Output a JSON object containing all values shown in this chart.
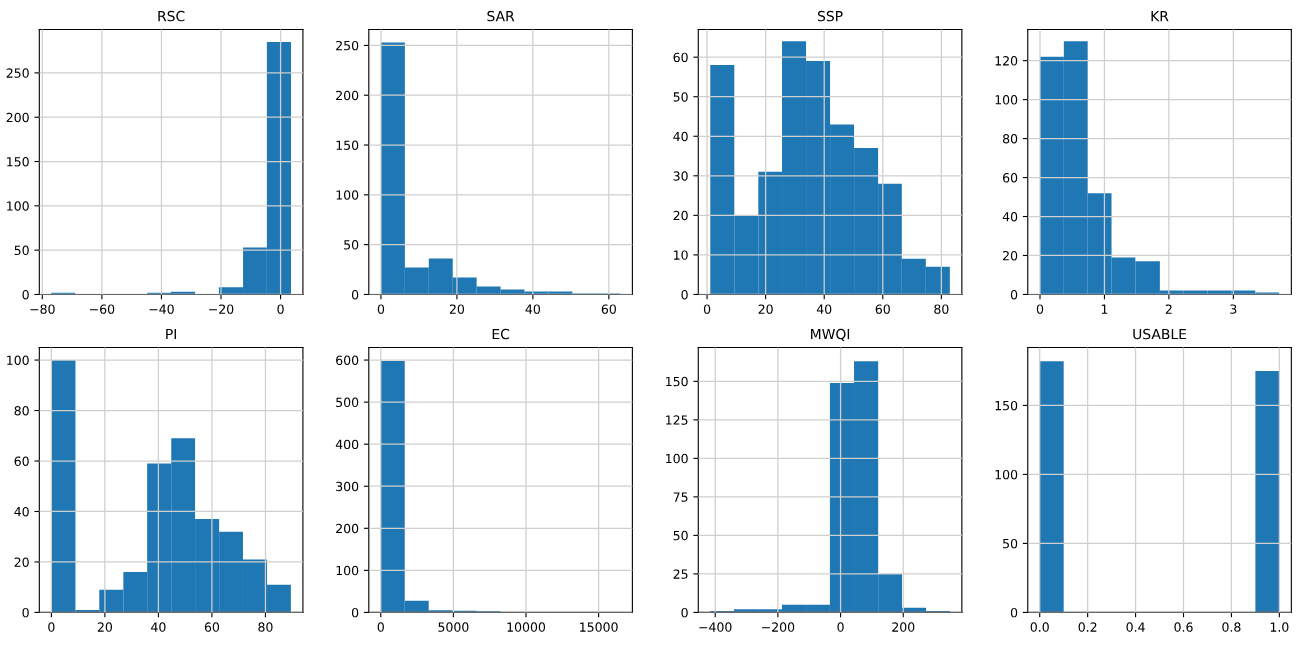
{
  "chart_data": [
    {
      "type": "histogram",
      "title": "RSC",
      "color": "#1f77b4",
      "grid": true,
      "bins": [
        -77,
        -69,
        -60.9,
        -52.9,
        -44.8,
        -36.8,
        -28.7,
        -20.7,
        -12.6,
        -4.6,
        3.5
      ],
      "values": [
        2,
        0,
        0,
        0,
        2,
        3,
        0,
        8,
        53,
        285
      ],
      "xlim": [
        -81,
        7.5
      ],
      "ylim": [
        0,
        299
      ],
      "xticks": [
        {
          "value": -80,
          "label": "−80"
        },
        {
          "value": -60,
          "label": "−60"
        },
        {
          "value": -40,
          "label": "−40"
        },
        {
          "value": -20,
          "label": "−20"
        },
        0
      ],
      "yticks": [
        0,
        50,
        100,
        150,
        200,
        250
      ]
    },
    {
      "type": "histogram",
      "title": "SAR",
      "color": "#1f77b4",
      "grid": true,
      "bins": [
        0,
        6.3,
        12.6,
        18.9,
        25.2,
        31.5,
        37.8,
        44.1,
        50.4,
        56.7,
        63
      ],
      "values": [
        253,
        27,
        36,
        17,
        8,
        5,
        3,
        3,
        1,
        1
      ],
      "xlim": [
        -3.2,
        66.2
      ],
      "ylim": [
        0,
        266
      ],
      "xticks": [
        0,
        20,
        40,
        60
      ],
      "yticks": [
        0,
        50,
        100,
        150,
        200,
        250
      ]
    },
    {
      "type": "histogram",
      "title": "SSP",
      "color": "#1f77b4",
      "grid": true,
      "bins": [
        1.1,
        9.3,
        17.5,
        25.6,
        33.8,
        42,
        50.2,
        58.4,
        66.5,
        74.7,
        82.9
      ],
      "values": [
        58,
        20,
        31,
        64,
        59,
        43,
        37,
        28,
        9,
        7
      ],
      "xlim": [
        -3,
        87
      ],
      "ylim": [
        0,
        67
      ],
      "xticks": [
        0,
        20,
        40,
        60,
        80
      ],
      "yticks": [
        0,
        10,
        20,
        30,
        40,
        50,
        60
      ]
    },
    {
      "type": "histogram",
      "title": "KR",
      "color": "#1f77b4",
      "grid": true,
      "bins": [
        0,
        0.37,
        0.74,
        1.11,
        1.48,
        1.86,
        2.23,
        2.6,
        2.97,
        3.34,
        3.71
      ],
      "values": [
        122,
        130,
        52,
        19,
        17,
        2,
        2,
        2,
        2,
        1
      ],
      "xlim": [
        -0.19,
        3.9
      ],
      "ylim": [
        0,
        136
      ],
      "xticks": [
        0,
        1,
        2,
        3
      ],
      "yticks": [
        0,
        20,
        40,
        60,
        80,
        100,
        120
      ]
    },
    {
      "type": "histogram",
      "title": "PI",
      "color": "#1f77b4",
      "grid": true,
      "bins": [
        0,
        9,
        17.9,
        26.9,
        35.8,
        44.8,
        53.7,
        62.7,
        71.6,
        80.6,
        89.5
      ],
      "values": [
        100,
        1,
        9,
        16,
        59,
        69,
        37,
        32,
        21,
        11
      ],
      "xlim": [
        -4.5,
        94
      ],
      "ylim": [
        0,
        105
      ],
      "xticks": [
        0,
        20,
        40,
        60,
        80
      ],
      "yticks": [
        0,
        20,
        40,
        60,
        80,
        100
      ]
    },
    {
      "type": "histogram",
      "title": "EC",
      "color": "#1f77b4",
      "grid": true,
      "bins": [
        0,
        1650,
        3300,
        4950,
        6600,
        8250,
        9900,
        11550,
        13200,
        14850,
        16500
      ],
      "values": [
        598,
        28,
        5,
        4,
        3,
        0,
        0,
        0,
        0,
        1
      ],
      "xlim": [
        -825,
        17325
      ],
      "ylim": [
        0,
        630
      ],
      "xticks": [
        0,
        5000,
        10000,
        15000
      ],
      "yticks": [
        0,
        100,
        200,
        300,
        400,
        500,
        600
      ]
    },
    {
      "type": "histogram",
      "title": "MWQI",
      "color": "#1f77b4",
      "grid": true,
      "bins": [
        -416,
        -340,
        -263,
        -187,
        -110,
        -34,
        43,
        120,
        196,
        273,
        349
      ],
      "values": [
        1,
        2,
        2,
        5,
        5,
        149,
        163,
        25,
        3,
        1
      ],
      "xlim": [
        -454,
        387
      ],
      "ylim": [
        0,
        172
      ],
      "xticks": [
        {
          "value": -400,
          "label": "−400"
        },
        {
          "value": -200,
          "label": "−200"
        },
        0,
        200
      ],
      "yticks": [
        0,
        25,
        50,
        75,
        100,
        125,
        150
      ]
    },
    {
      "type": "histogram",
      "title": "USABLE",
      "color": "#1f77b4",
      "grid": true,
      "bins": [
        0,
        0.1,
        0.2,
        0.3,
        0.4,
        0.5,
        0.6,
        0.7,
        0.8,
        0.9,
        1
      ],
      "values": [
        182,
        0,
        0,
        0,
        0,
        0,
        0,
        0,
        0,
        175
      ],
      "xlim": [
        -0.05,
        1.05
      ],
      "ylim": [
        0,
        192
      ],
      "xticks": [
        {
          "value": 0,
          "label": "0.0"
        },
        {
          "value": 0.2,
          "label": "0.2"
        },
        {
          "value": 0.4,
          "label": "0.4"
        },
        {
          "value": 0.6,
          "label": "0.6"
        },
        {
          "value": 0.8,
          "label": "0.8"
        },
        {
          "value": 1,
          "label": "1.0"
        }
      ],
      "yticks": [
        0,
        50,
        100,
        150
      ]
    }
  ]
}
